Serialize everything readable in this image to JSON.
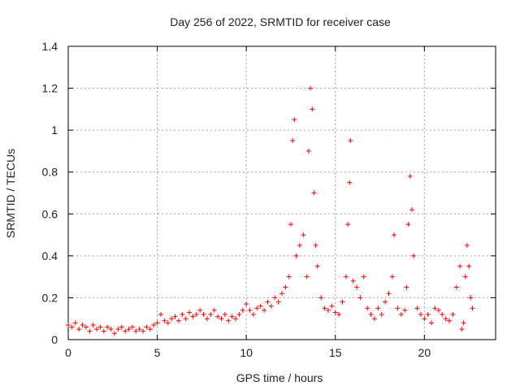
{
  "chart_data": {
    "type": "scatter",
    "title": "Day 256 of 2022, SRMTID for receiver case",
    "xlabel": "GPS time / hours",
    "ylabel": "SRMTID / TECUs",
    "xlim": [
      0,
      24
    ],
    "ylim": [
      0,
      1.4
    ],
    "x_ticks": [
      0,
      5,
      10,
      15,
      20
    ],
    "x_tick_labels": [
      "0",
      "5",
      "10",
      "15",
      "20"
    ],
    "y_ticks": [
      0,
      0.2,
      0.4,
      0.6,
      0.8,
      1.0,
      1.2,
      1.4
    ],
    "y_tick_labels": [
      "0",
      "0.2",
      "0.4",
      "0.6",
      "0.8",
      "1",
      "1.2",
      "1.4"
    ],
    "grid": true,
    "marker": "+",
    "series": [
      {
        "name": "SRMTID",
        "color": "#ff0000",
        "points": [
          [
            0.0,
            0.07
          ],
          [
            0.2,
            0.06
          ],
          [
            0.4,
            0.08
          ],
          [
            0.6,
            0.05
          ],
          [
            0.8,
            0.07
          ],
          [
            1.0,
            0.06
          ],
          [
            1.2,
            0.04
          ],
          [
            1.4,
            0.07
          ],
          [
            1.6,
            0.05
          ],
          [
            1.8,
            0.06
          ],
          [
            2.0,
            0.04
          ],
          [
            2.2,
            0.06
          ],
          [
            2.4,
            0.05
          ],
          [
            2.6,
            0.03
          ],
          [
            2.8,
            0.05
          ],
          [
            3.0,
            0.06
          ],
          [
            3.2,
            0.04
          ],
          [
            3.4,
            0.05
          ],
          [
            3.6,
            0.06
          ],
          [
            3.8,
            0.04
          ],
          [
            4.0,
            0.05
          ],
          [
            4.2,
            0.04
          ],
          [
            4.4,
            0.06
          ],
          [
            4.6,
            0.05
          ],
          [
            4.8,
            0.07
          ],
          [
            5.0,
            0.08
          ],
          [
            5.2,
            0.12
          ],
          [
            5.4,
            0.09
          ],
          [
            5.6,
            0.08
          ],
          [
            5.8,
            0.1
          ],
          [
            6.0,
            0.11
          ],
          [
            6.2,
            0.09
          ],
          [
            6.4,
            0.12
          ],
          [
            6.6,
            0.1
          ],
          [
            6.8,
            0.13
          ],
          [
            7.0,
            0.11
          ],
          [
            7.2,
            0.12
          ],
          [
            7.4,
            0.14
          ],
          [
            7.6,
            0.12
          ],
          [
            7.8,
            0.1
          ],
          [
            8.0,
            0.12
          ],
          [
            8.2,
            0.14
          ],
          [
            8.4,
            0.11
          ],
          [
            8.6,
            0.1
          ],
          [
            8.8,
            0.12
          ],
          [
            9.0,
            0.09
          ],
          [
            9.2,
            0.11
          ],
          [
            9.4,
            0.1
          ],
          [
            9.6,
            0.12
          ],
          [
            9.8,
            0.14
          ],
          [
            10.0,
            0.17
          ],
          [
            10.2,
            0.14
          ],
          [
            10.4,
            0.12
          ],
          [
            10.6,
            0.15
          ],
          [
            10.8,
            0.16
          ],
          [
            11.0,
            0.14
          ],
          [
            11.2,
            0.18
          ],
          [
            11.4,
            0.16
          ],
          [
            11.6,
            0.2
          ],
          [
            11.8,
            0.18
          ],
          [
            12.0,
            0.22
          ],
          [
            12.2,
            0.25
          ],
          [
            12.4,
            0.3
          ],
          [
            12.5,
            0.55
          ],
          [
            12.6,
            0.95
          ],
          [
            12.7,
            1.05
          ],
          [
            12.8,
            0.4
          ],
          [
            13.0,
            0.45
          ],
          [
            13.2,
            0.5
          ],
          [
            13.4,
            0.3
          ],
          [
            13.5,
            0.9
          ],
          [
            13.6,
            1.2
          ],
          [
            13.7,
            1.1
          ],
          [
            13.8,
            0.7
          ],
          [
            13.9,
            0.45
          ],
          [
            14.0,
            0.35
          ],
          [
            14.2,
            0.2
          ],
          [
            14.4,
            0.15
          ],
          [
            14.6,
            0.14
          ],
          [
            14.8,
            0.16
          ],
          [
            15.0,
            0.13
          ],
          [
            15.2,
            0.12
          ],
          [
            15.4,
            0.18
          ],
          [
            15.6,
            0.3
          ],
          [
            15.7,
            0.55
          ],
          [
            15.8,
            0.75
          ],
          [
            15.85,
            0.95
          ],
          [
            16.0,
            0.28
          ],
          [
            16.2,
            0.25
          ],
          [
            16.4,
            0.2
          ],
          [
            16.6,
            0.3
          ],
          [
            16.8,
            0.15
          ],
          [
            17.0,
            0.12
          ],
          [
            17.2,
            0.1
          ],
          [
            17.4,
            0.15
          ],
          [
            17.6,
            0.12
          ],
          [
            17.8,
            0.18
          ],
          [
            18.0,
            0.22
          ],
          [
            18.2,
            0.3
          ],
          [
            18.3,
            0.5
          ],
          [
            18.5,
            0.15
          ],
          [
            18.7,
            0.12
          ],
          [
            18.9,
            0.14
          ],
          [
            19.0,
            0.25
          ],
          [
            19.1,
            0.55
          ],
          [
            19.2,
            0.78
          ],
          [
            19.3,
            0.62
          ],
          [
            19.4,
            0.4
          ],
          [
            19.6,
            0.15
          ],
          [
            19.8,
            0.12
          ],
          [
            20.0,
            0.1
          ],
          [
            20.2,
            0.12
          ],
          [
            20.4,
            0.08
          ],
          [
            20.6,
            0.15
          ],
          [
            20.8,
            0.14
          ],
          [
            21.0,
            0.12
          ],
          [
            21.2,
            0.1
          ],
          [
            21.4,
            0.09
          ],
          [
            21.6,
            0.12
          ],
          [
            21.8,
            0.25
          ],
          [
            22.0,
            0.35
          ],
          [
            22.1,
            0.05
          ],
          [
            22.2,
            0.08
          ],
          [
            22.3,
            0.3
          ],
          [
            22.4,
            0.45
          ],
          [
            22.5,
            0.35
          ],
          [
            22.6,
            0.2
          ],
          [
            22.7,
            0.15
          ]
        ]
      }
    ]
  }
}
